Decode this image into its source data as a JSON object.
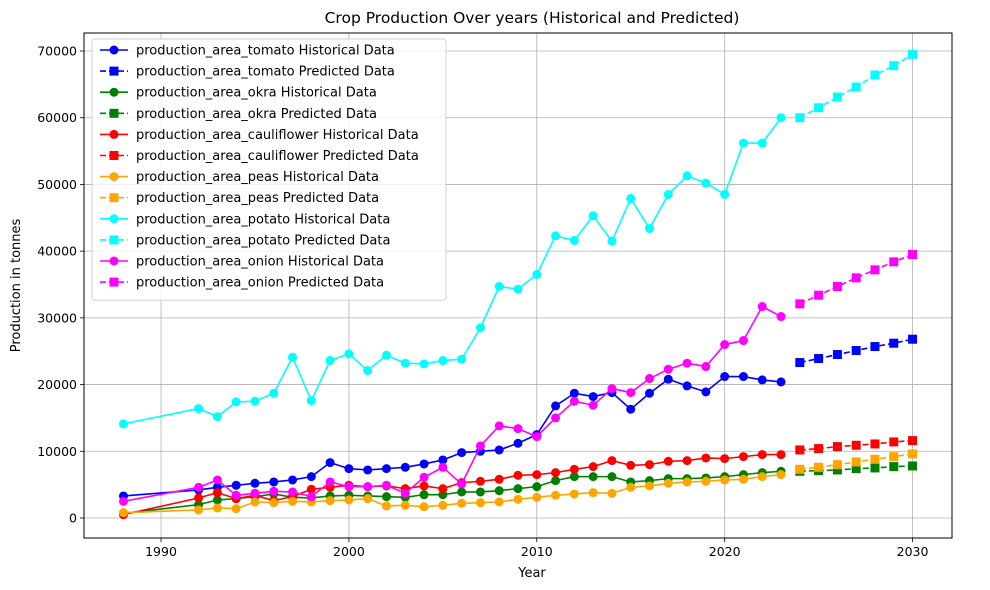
{
  "chart_data": {
    "type": "line",
    "title": "Crop Production  Over years (Historical and Predicted)",
    "xlabel": "Year",
    "ylabel": "Production in tonnes",
    "xlim": [
      1985.9,
      2032.1
    ],
    "ylim": [
      -3000,
      72700
    ],
    "xticks": [
      1990,
      2000,
      2010,
      2020,
      2030
    ],
    "yticks": [
      0,
      10000,
      20000,
      30000,
      40000,
      50000,
      60000,
      70000
    ],
    "grid": true,
    "legend_position": "top-left",
    "historical_x": [
      1988,
      1992,
      1993,
      1994,
      1995,
      1996,
      1997,
      1998,
      1999,
      2000,
      2001,
      2002,
      2003,
      2004,
      2005,
      2006,
      2007,
      2008,
      2009,
      2010,
      2011,
      2012,
      2013,
      2014,
      2015,
      2016,
      2017,
      2018,
      2019,
      2020,
      2021,
      2022,
      2023
    ],
    "predicted_x": [
      2024,
      2025,
      2026,
      2027,
      2028,
      2029,
      2030
    ],
    "series": [
      {
        "name": "production_area_tomato Historical Data",
        "color": "#0000ff",
        "marker": "circle",
        "linestyle": "solid",
        "values": [
          3300,
          4200,
          4600,
          4900,
          5200,
          5400,
          5700,
          6200,
          8300,
          7400,
          7200,
          7400,
          7600,
          8100,
          8700,
          9800,
          10000,
          10200,
          11200,
          12500,
          16800,
          18700,
          18200,
          18800,
          16300,
          18700,
          20800,
          19800,
          18900,
          21200,
          21200,
          20700,
          20400
        ]
      },
      {
        "name": "production_area_tomato Predicted Data",
        "color": "#0000ff",
        "marker": "square",
        "linestyle": "dashed",
        "values": [
          23300,
          23900,
          24500,
          25100,
          25700,
          26200,
          26800
        ]
      },
      {
        "name": "production_area_okra Historical Data",
        "color": "#008000",
        "marker": "circle",
        "linestyle": "solid",
        "values": [
          700,
          2000,
          2700,
          2900,
          3200,
          3600,
          3100,
          3000,
          3300,
          3400,
          3300,
          3200,
          3100,
          3500,
          3500,
          3900,
          3900,
          4100,
          4400,
          4700,
          5600,
          6200,
          6200,
          6200,
          5400,
          5600,
          5900,
          5900,
          6000,
          6200,
          6500,
          6800,
          7000
        ]
      },
      {
        "name": "production_area_okra Predicted Data",
        "color": "#008000",
        "marker": "square",
        "linestyle": "dashed",
        "values": [
          7000,
          7100,
          7200,
          7400,
          7500,
          7700,
          7800
        ]
      },
      {
        "name": "production_area_cauliflower Historical Data",
        "color": "#ff0000",
        "marker": "circle",
        "linestyle": "solid",
        "values": [
          500,
          3000,
          3800,
          2900,
          3400,
          2600,
          3200,
          4300,
          4600,
          4900,
          4700,
          4800,
          4400,
          4800,
          4400,
          5300,
          5500,
          5800,
          6400,
          6500,
          6800,
          7300,
          7700,
          8600,
          7900,
          8000,
          8500,
          8600,
          9000,
          8900,
          9200,
          9500,
          9500
        ]
      },
      {
        "name": "production_area_cauliflower Predicted Data",
        "color": "#ff0000",
        "marker": "square",
        "linestyle": "dashed",
        "values": [
          10200,
          10400,
          10700,
          10900,
          11100,
          11400,
          11600
        ]
      },
      {
        "name": "production_area_peas Historical Data",
        "color": "#ffa500",
        "marker": "circle",
        "linestyle": "solid",
        "values": [
          800,
          1200,
          1500,
          1400,
          2400,
          2300,
          2500,
          2400,
          2600,
          2700,
          2900,
          1800,
          1900,
          1700,
          1900,
          2200,
          2300,
          2400,
          2800,
          3100,
          3400,
          3600,
          3800,
          3700,
          4600,
          4800,
          5200,
          5400,
          5500,
          5700,
          5800,
          6200,
          6500
        ]
      },
      {
        "name": "production_area_peas Predicted Data",
        "color": "#ffa500",
        "marker": "square",
        "linestyle": "dashed",
        "values": [
          7300,
          7600,
          8000,
          8400,
          8800,
          9200,
          9600
        ]
      },
      {
        "name": "production_area_potato Historical Data",
        "color": "#00ffff",
        "marker": "circle",
        "linestyle": "solid",
        "values": [
          14100,
          16400,
          15200,
          17400,
          17500,
          18700,
          24100,
          17600,
          23600,
          24600,
          22100,
          24400,
          23200,
          23100,
          23600,
          23800,
          28500,
          34700,
          34300,
          36500,
          42300,
          41600,
          45300,
          41500,
          47900,
          43400,
          48500,
          51300,
          50200,
          48500,
          56200,
          56200,
          60000
        ]
      },
      {
        "name": "production_area_potato Predicted Data",
        "color": "#00ffff",
        "marker": "square",
        "linestyle": "dashed",
        "values": [
          60000,
          61500,
          63100,
          64600,
          66400,
          67800,
          69500
        ]
      },
      {
        "name": "production_area_onion Historical Data",
        "color": "#ff00ff",
        "marker": "circle",
        "linestyle": "solid",
        "values": [
          2500,
          4600,
          5700,
          3400,
          3700,
          4000,
          3900,
          3200,
          5400,
          4700,
          4700,
          4900,
          3700,
          6100,
          7600,
          5100,
          10800,
          13800,
          13400,
          12200,
          15000,
          17500,
          16900,
          19400,
          18800,
          20900,
          22300,
          23200,
          22700,
          26000,
          26600,
          31700,
          30200
        ]
      },
      {
        "name": "production_area_onion Predicted Data",
        "color": "#ff00ff",
        "marker": "square",
        "linestyle": "dashed",
        "values": [
          32100,
          33400,
          34700,
          36000,
          37200,
          38400,
          39500
        ]
      }
    ]
  }
}
